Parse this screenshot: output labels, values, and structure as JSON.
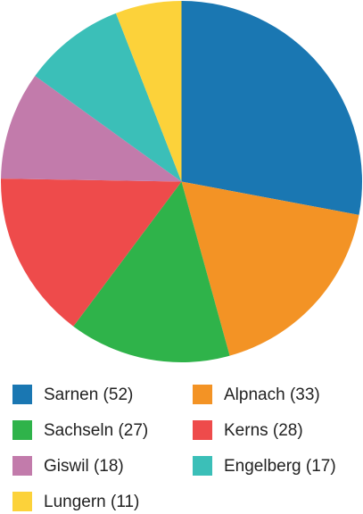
{
  "chart_data": {
    "type": "pie",
    "categories": [
      "Sarnen (52)",
      "Alpnach (33)",
      "Sachseln (27)",
      "Kerns (28)",
      "Giswil (18)",
      "Engelberg (17)",
      "Lungern (11)"
    ],
    "values": [
      52,
      33,
      27,
      28,
      18,
      17,
      11
    ],
    "colors": [
      "#1a77b2",
      "#f39325",
      "#2fb34a",
      "#ee4b4b",
      "#c27bab",
      "#3bbfb8",
      "#fcd23a"
    ],
    "legend": "bottom"
  }
}
